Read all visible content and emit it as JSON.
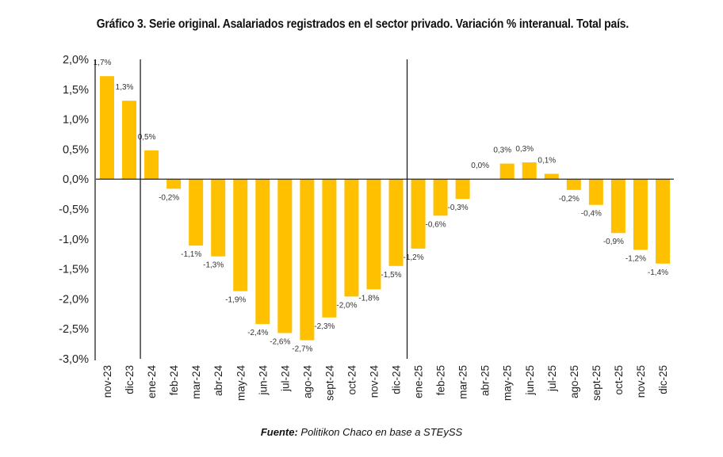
{
  "chart_data": {
    "type": "bar",
    "title": "Gráfico 3. Serie original. Asalariados registrados en el sector privado. Variación % interanual. Total país.",
    "xlabel": "",
    "ylabel": "",
    "ylim": [
      -3.0,
      2.0
    ],
    "yticks": [
      2.0,
      1.5,
      1.0,
      0.5,
      0.0,
      -0.5,
      -1.0,
      -1.5,
      -2.0,
      -2.5,
      -3.0
    ],
    "ytick_labels": [
      "2,0%",
      "1,5%",
      "1,0%",
      "0,5%",
      "0,0%",
      "-0,5%",
      "-1,0%",
      "-1,5%",
      "-2,0%",
      "-2,5%",
      "-3,0%"
    ],
    "grid": false,
    "legend": "none",
    "bar_color": "#FFC000",
    "year_separators_after": [
      "dic-23",
      "dic-24"
    ],
    "categories": [
      "nov-23",
      "dic-23",
      "ene-24",
      "feb-24",
      "mar-24",
      "abr-24",
      "may-24",
      "jun-24",
      "jul-24",
      "ago-24",
      "sept-24",
      "oct-24",
      "nov-24",
      "dic-24",
      "ene-25",
      "feb-25",
      "mar-25",
      "abr-25",
      "may-25",
      "jun-25",
      "jul-25",
      "ago-25",
      "sept-25",
      "oct-25",
      "nov-25",
      "dic-25"
    ],
    "values": [
      1.72,
      1.31,
      0.48,
      -0.16,
      -1.11,
      -1.29,
      -1.87,
      -2.42,
      -2.57,
      -2.69,
      -2.31,
      -1.96,
      -1.84,
      -1.45,
      -1.16,
      -0.61,
      -0.33,
      0.0,
      0.26,
      0.28,
      0.09,
      -0.18,
      -0.43,
      -0.9,
      -1.18,
      -1.41
    ],
    "data_labels": [
      "1,7%",
      "1,3%",
      "0,5%",
      "-0,2%",
      "-1,1%",
      "-1,3%",
      "-1,9%",
      "-2,4%",
      "-2,6%",
      "-2,7%",
      "-2,3%",
      "-2,0%",
      "-1,8%",
      "-1,5%",
      "-1,2%",
      "-0,6%",
      "-0,3%",
      "0,0%",
      "0,3%",
      "0,3%",
      "0,1%",
      "-0,2%",
      "-0,4%",
      "-0,9%",
      "-1,2%",
      "-1,4%"
    ]
  },
  "source": {
    "prefix": "Fuente:",
    "text": " Politikon Chaco en base a STEySS"
  }
}
